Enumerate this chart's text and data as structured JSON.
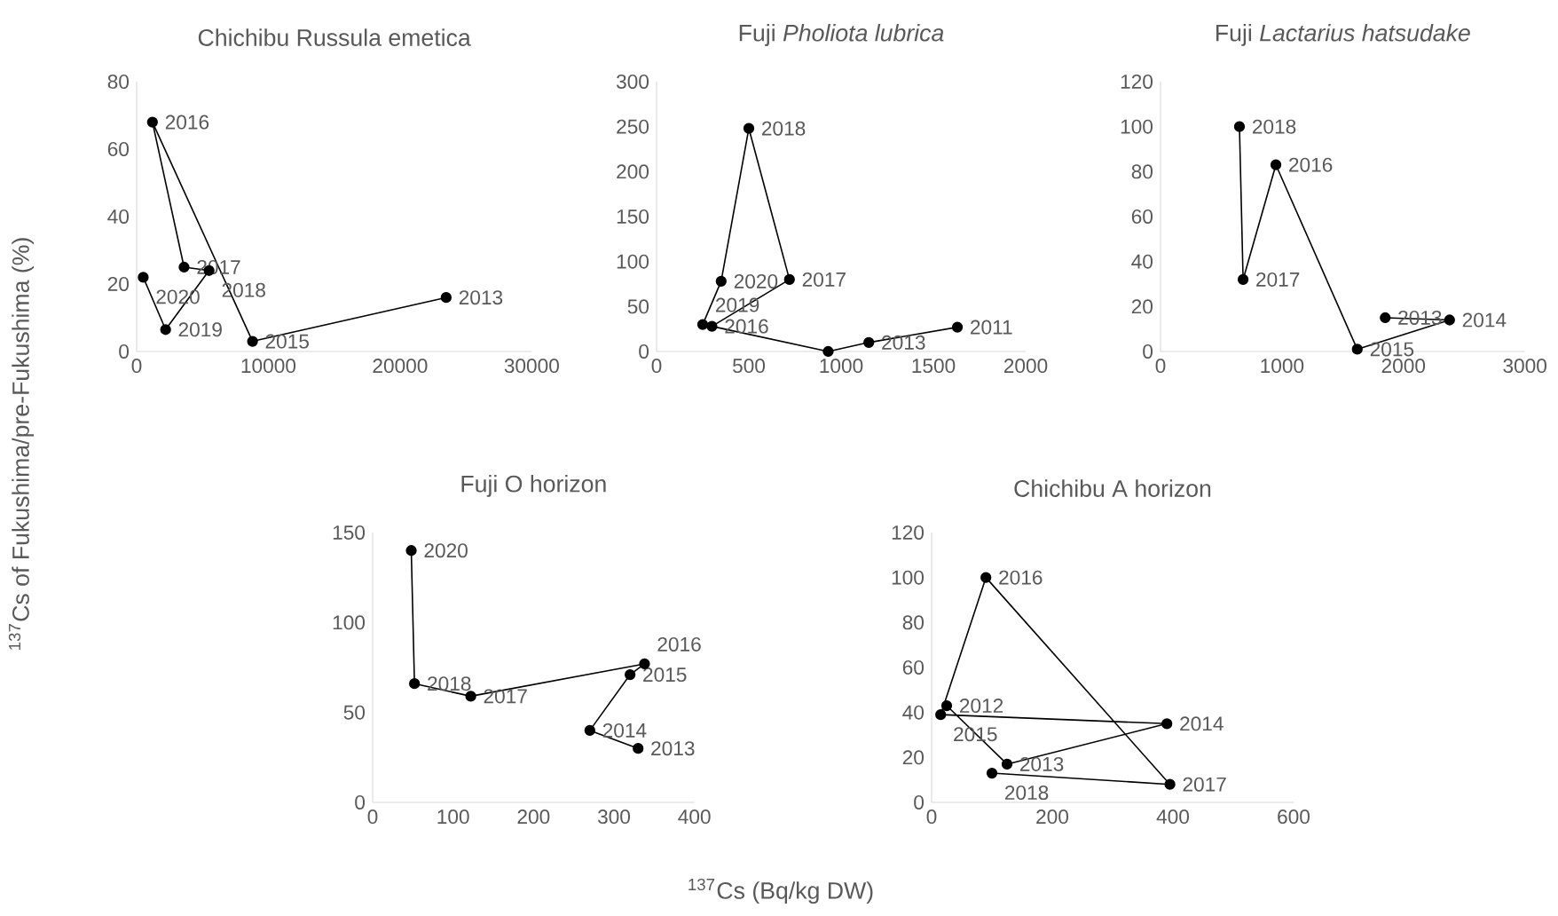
{
  "chart_data": [
    {
      "type": "line",
      "title": "Chichibu  Russula emetica",
      "ylabel": "$^{137}$Cs of Fukushima/pre-Fukushima (%)",
      "marker": "circle",
      "xlim": [
        0,
        30000
      ],
      "ylim": [
        0,
        80
      ],
      "xticks": [
        0,
        10000,
        20000,
        30000
      ],
      "yticks": [
        0,
        20,
        40,
        60,
        80
      ],
      "series": [
        {
          "color": "#000000",
          "x": [
            23500,
            8800,
            1200,
            3600,
            5500,
            2200,
            500
          ],
          "values": [
            16,
            3,
            68,
            25,
            24,
            6.5,
            22
          ]
        }
      ],
      "annotations": [
        {
          "text": "2013",
          "x": 23500,
          "y": 16
        },
        {
          "text": "2015",
          "x": 8800,
          "y": 3
        },
        {
          "text": "2016",
          "x": 1200,
          "y": 68
        },
        {
          "text": "2017",
          "x": 3600,
          "y": 25
        },
        {
          "text": "2018",
          "x": 5500,
          "y": 24
        },
        {
          "text": "2019",
          "x": 2200,
          "y": 6.5
        },
        {
          "text": "2020",
          "x": 500,
          "y": 22
        }
      ]
    },
    {
      "type": "line",
      "title": "Fuji  *Pholiota lubrica*",
      "marker": "circle",
      "xlim": [
        0,
        2000
      ],
      "ylim": [
        0,
        300
      ],
      "xticks": [
        0,
        500,
        1000,
        1500,
        2000
      ],
      "yticks": [
        0,
        50,
        100,
        150,
        200,
        250,
        300
      ],
      "series": [
        {
          "color": "#000000",
          "x": [
            1630,
            1150,
            930,
            300,
            720,
            500,
            350,
            250
          ],
          "values": [
            27,
            10,
            0,
            28,
            80,
            248,
            78,
            30
          ]
        }
      ],
      "annotations": [
        {
          "text": "2011",
          "x": 1630,
          "y": 27
        },
        {
          "text": "2013",
          "x": 1150,
          "y": 10
        },
        {
          "text": "2016",
          "x": 300,
          "y": 28
        },
        {
          "text": "2017",
          "x": 720,
          "y": 80
        },
        {
          "text": "2018",
          "x": 500,
          "y": 248
        },
        {
          "text": "2020",
          "x": 350,
          "y": 78
        },
        {
          "text": "2019",
          "x": 250,
          "y": 30
        }
      ]
    },
    {
      "type": "line",
      "title": "Fuji  *Lactarius hatsudake*",
      "marker": "circle",
      "xlim": [
        0,
        3000
      ],
      "ylim": [
        0,
        120
      ],
      "xticks": [
        0,
        1000,
        2000,
        3000
      ],
      "yticks": [
        0,
        20,
        40,
        60,
        80,
        100,
        120
      ],
      "series": [
        {
          "color": "#000000",
          "x": [
            1850,
            2380,
            1620,
            950,
            680,
            650
          ],
          "values": [
            15,
            14,
            1,
            83,
            32,
            100
          ]
        }
      ],
      "annotations": [
        {
          "text": "2013",
          "x": 1850,
          "y": 15
        },
        {
          "text": "2014",
          "x": 2380,
          "y": 14
        },
        {
          "text": "2015",
          "x": 1620,
          "y": 1
        },
        {
          "text": "2016",
          "x": 950,
          "y": 83
        },
        {
          "text": "2017",
          "x": 680,
          "y": 32
        },
        {
          "text": "2018",
          "x": 650,
          "y": 100
        }
      ]
    },
    {
      "type": "line",
      "title": "Fuji  O horizon",
      "marker": "circle",
      "xlim": [
        0,
        400
      ],
      "ylim": [
        0,
        150
      ],
      "xticks": [
        0,
        100,
        200,
        300,
        400
      ],
      "yticks": [
        0,
        50,
        100,
        150
      ],
      "series": [
        {
          "color": "#000000",
          "x": [
            330,
            270,
            320,
            338,
            122,
            52,
            48
          ],
          "values": [
            30,
            40,
            71,
            77,
            59,
            66,
            140
          ]
        }
      ],
      "annotations": [
        "$^{137}$Cs (Bq/kg DW)",
        {
          "text": "2013",
          "x": 330,
          "y": 30
        },
        {
          "text": "2014",
          "x": 270,
          "y": 40
        },
        {
          "text": "2015",
          "x": 320,
          "y": 71
        },
        {
          "text": "2016",
          "x": 338,
          "y": 77
        },
        {
          "text": "2017",
          "x": 122,
          "y": 59
        },
        {
          "text": "2018",
          "x": 52,
          "y": 66
        },
        {
          "text": "2020",
          "x": 48,
          "y": 140
        }
      ]
    },
    {
      "type": "line",
      "title": "Chichibu   A horizon",
      "marker": "circle",
      "xlim": [
        0,
        600
      ],
      "ylim": [
        0,
        120
      ],
      "xticks": [
        0,
        200,
        400,
        600
      ],
      "yticks": [
        0,
        20,
        40,
        60,
        80,
        100,
        120
      ],
      "series": [
        {
          "color": "#000000",
          "x": [
            25,
            125,
            390,
            15,
            90,
            395,
            100
          ],
          "values": [
            43,
            17,
            35,
            39,
            100,
            8,
            13
          ]
        }
      ],
      "annotations": [
        {
          "text": "2012",
          "x": 25,
          "y": 43
        },
        {
          "text": "2013",
          "x": 125,
          "y": 17
        },
        {
          "text": "2014",
          "x": 390,
          "y": 35
        },
        {
          "text": "2015",
          "x": 15,
          "y": 39
        },
        {
          "text": "2016",
          "x": 90,
          "y": 100
        },
        {
          "text": "2017",
          "x": 395,
          "y": 8
        },
        {
          "text": "2018",
          "x": 100,
          "y": 13
        }
      ]
    }
  ]
}
